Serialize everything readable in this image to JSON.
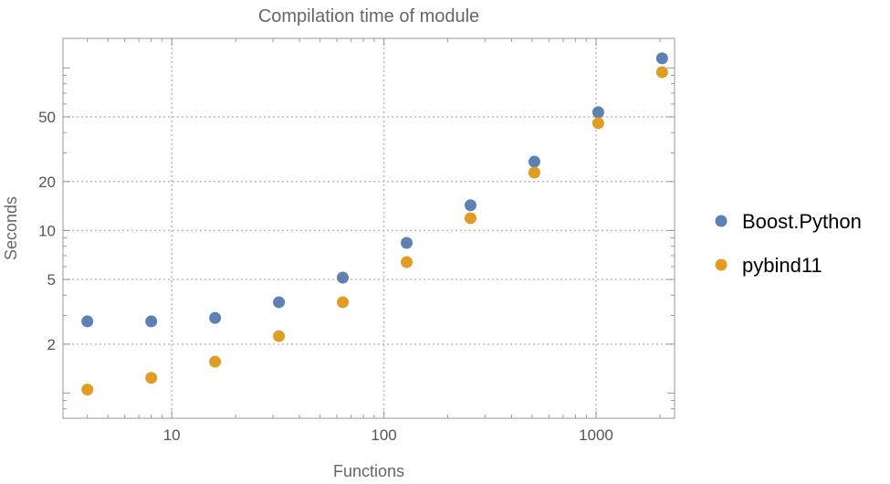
{
  "chart_data": {
    "type": "scatter",
    "title": "Compilation time of module",
    "xlabel": "Functions",
    "ylabel": "Seconds",
    "xscale": "log",
    "yscale": "log",
    "xlim": [
      3.07,
      2345
    ],
    "ylim": [
      0.7,
      152
    ],
    "grid": true,
    "legend_position": "right",
    "x_ticks": [
      10,
      100,
      1000
    ],
    "x_tick_labels": [
      "10",
      "100",
      "1000"
    ],
    "y_ticks": [
      2,
      5,
      10,
      20,
      50
    ],
    "y_tick_labels": [
      "2",
      "5",
      "10",
      "20",
      "50"
    ],
    "x": [
      4,
      8,
      16,
      32,
      64,
      128,
      256,
      512,
      1024,
      2048
    ],
    "series": [
      {
        "name": "Boost.Python",
        "color": "#5E81B5",
        "values": [
          2.76,
          2.76,
          2.9,
          3.62,
          5.13,
          8.39,
          14.3,
          26.5,
          53.4,
          114.5
        ]
      },
      {
        "name": "pybind11",
        "color": "#E19C24",
        "values": [
          1.05,
          1.24,
          1.56,
          2.24,
          3.62,
          6.39,
          11.9,
          22.7,
          45.7,
          94.2
        ]
      }
    ]
  }
}
